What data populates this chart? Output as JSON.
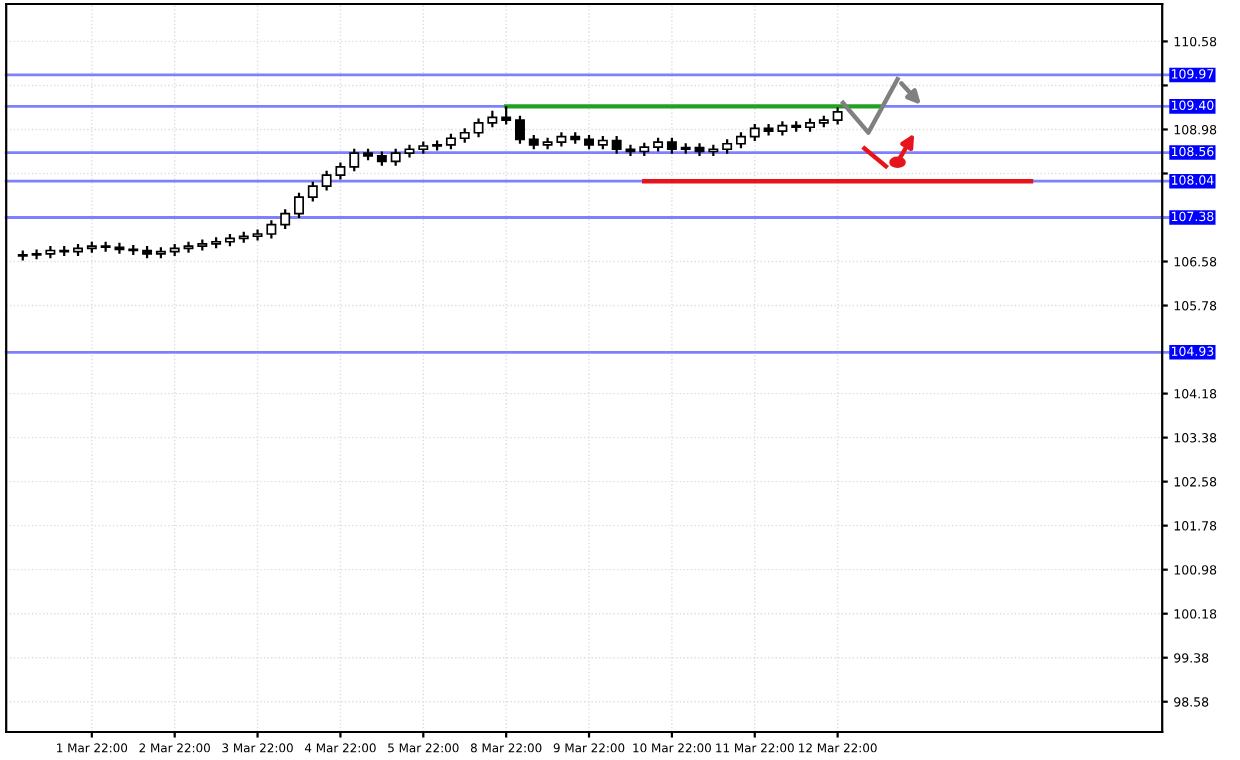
{
  "chart_data": {
    "type": "candlestick",
    "color": "#000000",
    "categories": [
      null,
      null,
      null,
      null,
      null,
      "1 Mar 22:00",
      null,
      null,
      null,
      null,
      null,
      "2 Mar 22:00",
      null,
      null,
      null,
      null,
      null,
      "3 Mar 22:00",
      null,
      null,
      null,
      null,
      null,
      "4 Mar 22:00",
      null,
      null,
      null,
      null,
      null,
      "5 Mar 22:00",
      null,
      null,
      null,
      null,
      null,
      "8 Mar 22:00",
      null,
      null,
      null,
      null,
      null,
      "9 Mar 22:00",
      null,
      null,
      null,
      null,
      null,
      "10 Mar 22:00",
      null,
      null,
      null,
      null,
      null,
      "11 Mar 22:00",
      null,
      null,
      null,
      null,
      null,
      "12 Mar 22:00",
      null,
      null,
      null,
      null,
      null,
      null,
      null,
      null,
      null,
      null,
      null,
      null,
      null,
      null,
      null,
      null,
      null,
      null,
      null,
      null,
      null,
      null,
      null
    ],
    "ohlc": [
      [
        106.68,
        106.76,
        106.62,
        106.7
      ],
      [
        106.7,
        106.78,
        106.64,
        106.72
      ],
      [
        106.72,
        106.84,
        106.66,
        106.78
      ],
      [
        106.78,
        106.84,
        106.7,
        106.76
      ],
      [
        106.76,
        106.88,
        106.7,
        106.82
      ],
      [
        106.82,
        106.92,
        106.76,
        106.86
      ],
      [
        106.86,
        106.92,
        106.78,
        106.84
      ],
      [
        106.84,
        106.9,
        106.74,
        106.8
      ],
      [
        106.8,
        106.86,
        106.72,
        106.78
      ],
      [
        106.78,
        106.84,
        106.66,
        106.72
      ],
      [
        106.72,
        106.82,
        106.66,
        106.76
      ],
      [
        106.76,
        106.88,
        106.7,
        106.82
      ],
      [
        106.82,
        106.92,
        106.76,
        106.86
      ],
      [
        106.86,
        106.96,
        106.8,
        106.9
      ],
      [
        106.9,
        107.0,
        106.84,
        106.94
      ],
      [
        106.94,
        107.06,
        106.88,
        107.0
      ],
      [
        107.0,
        107.1,
        106.94,
        107.04
      ],
      [
        107.04,
        107.14,
        106.98,
        107.08
      ],
      [
        107.08,
        107.31,
        107.02,
        107.25
      ],
      [
        107.25,
        107.51,
        107.19,
        107.45
      ],
      [
        107.45,
        107.81,
        107.39,
        107.75
      ],
      [
        107.75,
        108.01,
        107.69,
        107.95
      ],
      [
        107.95,
        108.21,
        107.89,
        108.15
      ],
      [
        108.15,
        108.36,
        108.09,
        108.3
      ],
      [
        108.3,
        108.61,
        108.24,
        108.55
      ],
      [
        108.55,
        108.61,
        108.44,
        108.5
      ],
      [
        108.5,
        108.56,
        108.34,
        108.4
      ],
      [
        108.4,
        108.61,
        108.34,
        108.55
      ],
      [
        108.55,
        108.68,
        108.49,
        108.62
      ],
      [
        108.62,
        108.74,
        108.56,
        108.68
      ],
      [
        108.68,
        108.76,
        108.62,
        108.7
      ],
      [
        108.7,
        108.88,
        108.64,
        108.82
      ],
      [
        108.82,
        108.98,
        108.76,
        108.92
      ],
      [
        108.92,
        109.16,
        108.86,
        109.1
      ],
      [
        109.1,
        109.3,
        109.04,
        109.2
      ],
      [
        109.2,
        109.38,
        109.09,
        109.15
      ],
      [
        109.15,
        109.21,
        108.74,
        108.8
      ],
      [
        108.8,
        108.86,
        108.64,
        108.7
      ],
      [
        108.7,
        108.81,
        108.64,
        108.75
      ],
      [
        108.75,
        108.91,
        108.69,
        108.85
      ],
      [
        108.85,
        108.91,
        108.74,
        108.8
      ],
      [
        108.8,
        108.86,
        108.64,
        108.7
      ],
      [
        108.7,
        108.84,
        108.64,
        108.78
      ],
      [
        108.78,
        108.84,
        108.56,
        108.62
      ],
      [
        108.62,
        108.68,
        108.52,
        108.58
      ],
      [
        108.58,
        108.72,
        108.52,
        108.66
      ],
      [
        108.66,
        108.81,
        108.6,
        108.75
      ],
      [
        108.75,
        108.81,
        108.56,
        108.62
      ],
      [
        108.62,
        108.71,
        108.56,
        108.65
      ],
      [
        108.65,
        108.71,
        108.52,
        108.58
      ],
      [
        108.58,
        108.68,
        108.52,
        108.62
      ],
      [
        108.62,
        108.78,
        108.56,
        108.72
      ],
      [
        108.72,
        108.91,
        108.66,
        108.85
      ],
      [
        108.85,
        109.06,
        108.79,
        109.0
      ],
      [
        109.0,
        109.06,
        108.89,
        108.95
      ],
      [
        108.95,
        109.11,
        108.89,
        109.05
      ],
      [
        109.05,
        109.11,
        108.96,
        109.02
      ],
      [
        109.02,
        109.16,
        108.96,
        109.1
      ],
      [
        109.1,
        109.21,
        109.04,
        109.15
      ],
      [
        109.15,
        109.36,
        109.09,
        109.3
      ],
      null,
      null,
      null,
      null,
      null,
      null,
      null,
      null,
      null,
      null,
      null,
      null,
      null,
      null,
      null,
      null,
      null,
      null,
      null,
      null,
      null,
      null,
      null
    ],
    "series": [
      {
        "type": "line",
        "color": "#22a022",
        "values": [
          null,
          null,
          null,
          null,
          null,
          null,
          null,
          null,
          null,
          null,
          null,
          null,
          null,
          null,
          null,
          null,
          null,
          null,
          null,
          null,
          null,
          null,
          null,
          null,
          null,
          null,
          null,
          null,
          null,
          null,
          null,
          null,
          null,
          null,
          null,
          109.4,
          109.4,
          109.4,
          109.4,
          109.4,
          109.4,
          109.4,
          109.4,
          109.4,
          109.4,
          109.4,
          109.4,
          109.4,
          109.4,
          109.4,
          109.4,
          109.4,
          109.4,
          109.4,
          109.4,
          109.4,
          109.4,
          109.4,
          109.4,
          109.4,
          109.4,
          109.4,
          109.4,
          null,
          null,
          null,
          null,
          null,
          null,
          null,
          null,
          null,
          null,
          null,
          null,
          null,
          null,
          null,
          null,
          null,
          null,
          null,
          null
        ]
      },
      {
        "type": "line",
        "color": "#e8141c",
        "values": [
          null,
          null,
          null,
          null,
          null,
          null,
          null,
          null,
          null,
          null,
          null,
          null,
          null,
          null,
          null,
          null,
          null,
          null,
          null,
          null,
          null,
          null,
          null,
          null,
          null,
          null,
          null,
          null,
          null,
          null,
          null,
          null,
          null,
          null,
          null,
          null,
          null,
          null,
          null,
          null,
          null,
          null,
          null,
          null,
          null,
          108.04,
          108.04,
          108.04,
          108.04,
          108.04,
          108.04,
          108.04,
          108.04,
          108.04,
          108.04,
          108.04,
          108.04,
          108.04,
          108.04,
          108.04,
          108.04,
          108.04,
          108.04,
          108.04,
          108.04,
          108.04,
          108.04,
          108.04,
          108.04,
          108.04,
          108.04,
          108.04,
          108.04,
          108.04,
          null,
          null,
          null,
          null,
          null,
          null,
          null,
          null,
          null
        ]
      }
    ],
    "ref_lines": [
      {
        "axis": "y",
        "value": 109.97,
        "label": "109.97",
        "color": "#8080ff"
      },
      {
        "axis": "y",
        "value": 109.4,
        "label": "109.40",
        "color": "#8080ff"
      },
      {
        "axis": "y",
        "value": 108.56,
        "label": "108.56",
        "color": "#8080ff"
      },
      {
        "axis": "y",
        "value": 108.04,
        "label": "108.04",
        "color": "#8080ff"
      },
      {
        "axis": "y",
        "value": 107.38,
        "label": "107.38",
        "color": "#8080ff"
      },
      {
        "axis": "y",
        "value": 104.93,
        "label": "104.93",
        "color": "#8080ff"
      }
    ],
    "ylim": [
      98.03,
      111.26
    ],
    "yticks": [
      110.58,
      {
        "value": 109.78,
        "label": null
      },
      108.98,
      {
        "value": 108.18,
        "label": null
      },
      106.58,
      105.78,
      104.18,
      103.38,
      102.58,
      101.78,
      100.98,
      100.18,
      99.38,
      98.58
    ],
    "grid": true
  }
}
